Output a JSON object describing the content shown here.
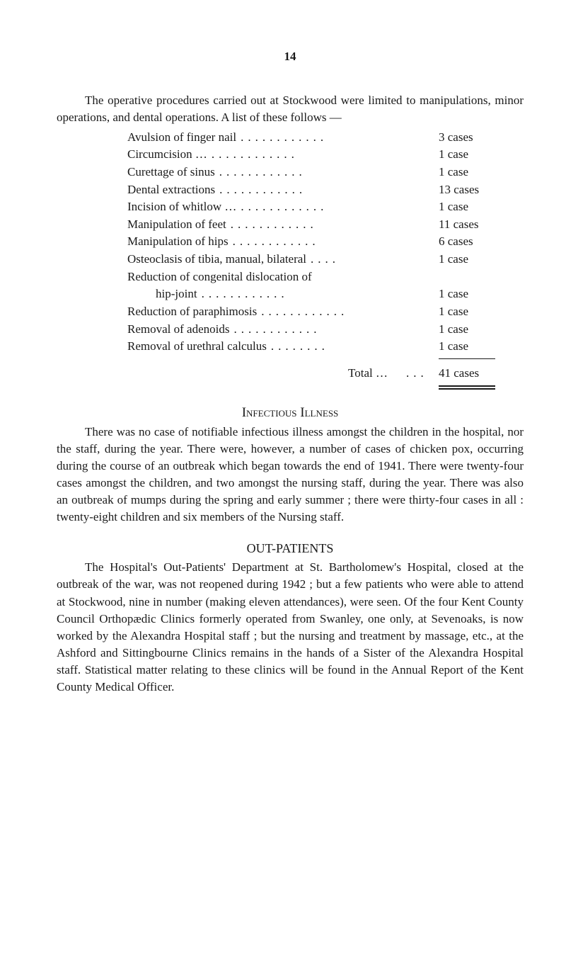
{
  "page_number": "14",
  "intro": "The operative procedures carried out at Stockwood were limited to manipulations, minor operations, and dental operations. A list of these follows —",
  "procedures": [
    {
      "label": "Avulsion of finger nail",
      "value": "3 cases"
    },
    {
      "label": "Circumcision …",
      "value": "1 case"
    },
    {
      "label": "Curettage of sinus",
      "value": "1 case"
    },
    {
      "label": "Dental extractions",
      "value": "13 cases"
    },
    {
      "label": "Incision of whitlow …",
      "value": "1 case"
    },
    {
      "label": "Manipulation of feet",
      "value": "11 cases"
    },
    {
      "label": "Manipulation of hips",
      "value": "6 cases"
    },
    {
      "label": "Osteoclasis of tibia, manual, bilateral",
      "value": "1 case"
    },
    {
      "label": "Reduction of congenital dislocation of",
      "value": ""
    },
    {
      "label": "hip-joint",
      "value": "1 case",
      "cont": true
    },
    {
      "label": "Reduction of paraphimosis",
      "value": "1 case"
    },
    {
      "label": "Removal of adenoids",
      "value": "1 case"
    },
    {
      "label": "Removal of urethral calculus",
      "value": "1 case"
    }
  ],
  "total_label": "Total …",
  "total_value": "41 cases",
  "infectious_heading": "Infectious Illness",
  "infectious_para": "There was no case of notifiable infectious illness amongst the children in the hospital, nor the staff, during the year. There were, however, a number of cases of chicken pox, occurring during the course of an outbreak which began towards the end of 1941. There were twenty-four cases amongst the children, and two amongst the nursing staff, during the year. There was also an outbreak of mumps during the spring and early summer ; there were thirty-four cases in all : twenty-eight children and six members of the Nursing staff.",
  "outpatients_heading": "OUT-PATIENTS",
  "outpatients_para": "The Hospital's Out-Patients' Department at St. Bartholomew's Hospital, closed at the outbreak of the war, was not reopened during 1942 ; but a few patients who were able to attend at Stockwood, nine in number (making eleven attendances), were seen. Of the four Kent County Council Orthopædic Clinics formerly operated from Swanley, one only, at Sevenoaks, is now worked by the Alexandra Hospital staff ; but the nursing and treatment by massage, etc., at the Ashford and Sittingbourne Clinics remains in the hands of a Sister of the Alexandra Hospital staff. Statistical matter relating to these clinics will be found in the Annual Report of the Kent County Medical Officer."
}
